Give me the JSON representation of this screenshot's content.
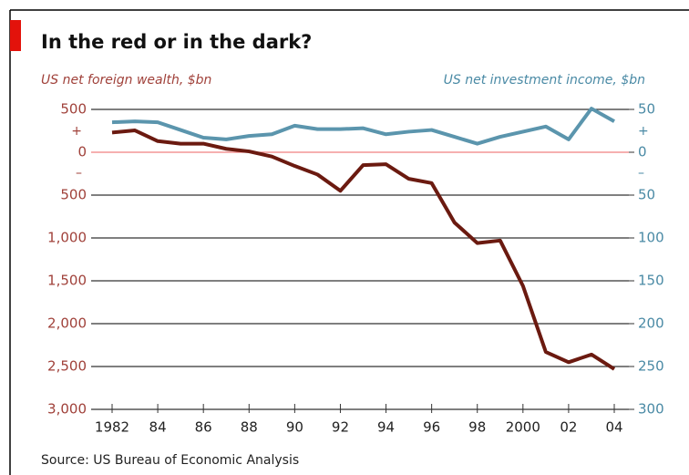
{
  "chart_data": {
    "type": "line",
    "title": "In the red or in the dark?",
    "ylabel": "US net foreign wealth, $bn",
    "y2label": "US net investment income, $bn",
    "source": "Source: US Bureau of Economic Analysis",
    "sign_plus": "+",
    "sign_minus": "–",
    "x": [
      1982,
      1983,
      1984,
      1985,
      1986,
      1987,
      1988,
      1989,
      1990,
      1991,
      1992,
      1993,
      1994,
      1995,
      1996,
      1997,
      1998,
      1999,
      2000,
      2001,
      2002,
      2003,
      2004
    ],
    "series": [
      {
        "name": "US net foreign wealth, $bn",
        "color": "#6b1a10",
        "axis": "y",
        "values": [
          230,
          255,
          130,
          100,
          100,
          40,
          10,
          -50,
          -160,
          -260,
          -450,
          -150,
          -140,
          -310,
          -360,
          -820,
          -1060,
          -1030,
          -1560,
          -2330,
          -2450,
          -2360,
          -2530
        ]
      },
      {
        "name": "US net investment income, $bn",
        "color": "#5b95ad",
        "axis": "y2",
        "values": [
          35,
          36,
          35,
          26,
          17,
          15,
          19,
          21,
          31,
          27,
          27,
          28,
          21,
          24,
          26,
          18,
          10,
          18,
          24,
          30,
          15,
          51,
          36
        ]
      }
    ],
    "xlim": [
      1982,
      2004
    ],
    "xticks": [
      1982,
      {
        "value": 1984,
        "label": "84"
      },
      {
        "value": 1986,
        "label": "86"
      },
      {
        "value": 1988,
        "label": "88"
      },
      {
        "value": 1990,
        "label": "90"
      },
      {
        "value": 1992,
        "label": "92"
      },
      {
        "value": 1994,
        "label": "94"
      },
      {
        "value": 1996,
        "label": "96"
      },
      {
        "value": 1998,
        "label": "98"
      },
      2000,
      {
        "value": 2002,
        "label": "02"
      },
      {
        "value": 2004,
        "label": "04"
      }
    ],
    "ylim": [
      -3000,
      500
    ],
    "yticks": [
      500,
      0,
      {
        "value": -500,
        "label": "500"
      },
      {
        "value": -1000,
        "label": "1,000"
      },
      {
        "value": -1500,
        "label": "1,500"
      },
      {
        "value": -2000,
        "label": "2,000"
      },
      {
        "value": -2500,
        "label": "2,500"
      },
      {
        "value": -3000,
        "label": "3,000"
      }
    ],
    "y2lim": [
      -300,
      50
    ],
    "y2ticks": [
      50,
      0,
      {
        "value": -50,
        "label": "50"
      },
      {
        "value": -100,
        "label": "100"
      },
      {
        "value": -150,
        "label": "150"
      },
      {
        "value": -200,
        "label": "200"
      },
      {
        "value": -250,
        "label": "250"
      },
      {
        "value": -300,
        "label": "300"
      }
    ],
    "grid": true
  }
}
